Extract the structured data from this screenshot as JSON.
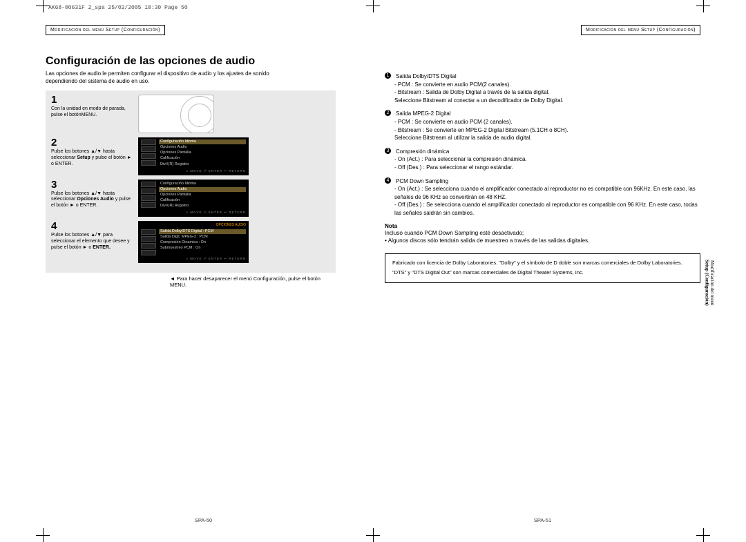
{
  "proof_line": "AK68-00631F 2_spa  25/02/2005  10:30  Page 50",
  "chapter_label": "Modificación del menú Setup (Configuración)",
  "left": {
    "title": "Configuración de las opciones de audio",
    "intro": "Las opciones de audio le permiten configurar el dispositivo de audio y los ajustes de sonido dependiendo del sistema de audio en uso.",
    "steps": [
      {
        "n": "1",
        "text_a": "Con la unidad en modo de parada, pulse el botón",
        "text_b": "MENU.",
        "shot": "remote"
      },
      {
        "n": "2",
        "text_a": "Pulse los botones ▲/▼ hasta seleccionar ",
        "bold": "Setup",
        "text_b": " y pulse el botón ► o ENTER.",
        "shot": "menu2"
      },
      {
        "n": "3",
        "text_a": "Pulse los botones ▲/▼ hasta seleccionar ",
        "bold": "Opciones Audio",
        "text_b": " y pulse el botón ► o ENTER.",
        "shot": "menu3"
      },
      {
        "n": "4",
        "text_a": "Pulse los botones ▲/▼ para seleccionar el elemento que desee y pulse el botón ► o ",
        "bold": "ENTER.",
        "shot": "menu4"
      }
    ],
    "menu_items": [
      "Configuración Idioma",
      "Opciones Audio",
      "Opciones Pantalla",
      "Calificación",
      "DivX(R) Registro"
    ],
    "menu4_title": "OPCIONES AUDIO",
    "menu4_rows": [
      {
        "l": "Salida Dolby/DTS Digital",
        "r": ": PCM"
      },
      {
        "l": "Salida Digit. MPEG-2",
        "r": ": PCM"
      },
      {
        "l": "Compresión Dinamica",
        "r": ": On"
      },
      {
        "l": "Submuestreo PCM",
        "r": ": On"
      }
    ],
    "osd_foot": "≡ MOVE   ⏎ ENTER   ↩ RETURN",
    "tip": "Para hacer desaparecer el menú Configuración, pulse el botón MENU.",
    "page_no": "SPA-50"
  },
  "right": {
    "items": [
      {
        "n": "1",
        "head": "Salida Dolby/DTS Digital",
        "subs": [
          "- PCM : Se convierte en audio PCM(2 canales).",
          "- Bitstream : Salida de Dolby Digital a través de la salida digital.",
          "  Seleccione Bitstream al conectar a un decodificador de Dolby Digital."
        ]
      },
      {
        "n": "2",
        "head": "Salida MPEG-2 Digital",
        "subs": [
          "- PCM : Se convierte en audio PCM (2 canales).",
          "- Bitstream : Se convierte en MPEG-2 Digital Bitstream (5.1CH o 8CH).",
          "  Seleccione Bitstream al utilizar la salida de audio digital."
        ]
      },
      {
        "n": "3",
        "head": "Compresión dinámica",
        "subs": [
          "- On (Act.)  : Para seleccionar la compresión dinámica.",
          "- Off (Des.) : Para seleccionar el rango estándar."
        ]
      },
      {
        "n": "4",
        "head": "PCM Down Sampling",
        "subs": [
          "- On (Act.) : Se selecciona cuando el amplificador conectado al reproductor no es compatible con 96KHz. En este caso, las señales de 96 KHz se convertirán en 48 KHZ.",
          "- Off (Des.) : Se selecciona cuando el amplificador conectado al reproductor es compatible con 96 KHz. En este caso, todas las señales saldrán sin cambios."
        ]
      }
    ],
    "nota_label": "Nota",
    "nota_lines": [
      "Incluso cuando PCM Down Sampling esté desactivado;",
      "• Algunos discos sólo tendrán salida de muestreo a través de las salidas digitales."
    ],
    "legal": [
      "Fabricado con licencia de Dolby Laboratories. \"Dolby\" y el símbolo de D doble son marcas comerciales de Dolby Laboratories.",
      "\"DTS\" y \"DTS Digital Out\" son marcas comerciales de Digital Theater Systems, Inc."
    ],
    "sidetab_a": "Modificación del menú",
    "sidetab_b": "Setup (Configuración)",
    "page_no": "SPA-51"
  }
}
